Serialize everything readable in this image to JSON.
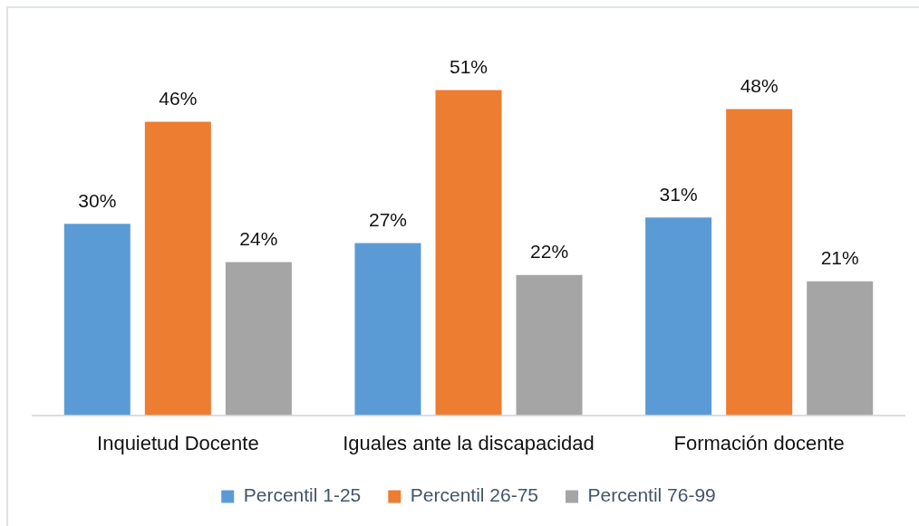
{
  "chart_data": {
    "type": "bar",
    "categories": [
      "Inquietud Docente",
      "Iguales ante la discapacidad",
      "Formación docente"
    ],
    "series": [
      {
        "name": "Percentil 1-25",
        "color": "#5b9bd5",
        "values": [
          30,
          27,
          31
        ],
        "value_labels": [
          "30%",
          "27%",
          "31%"
        ]
      },
      {
        "name": "Percentil 26-75",
        "color": "#ed7d31",
        "values": [
          46,
          51,
          48
        ],
        "value_labels": [
          "46%",
          "51%",
          "48%"
        ]
      },
      {
        "name": "Percentil 76-99",
        "color": "#a5a5a5",
        "values": [
          24,
          22,
          21
        ],
        "value_labels": [
          "24%",
          "22%",
          "21%"
        ]
      }
    ],
    "legend": "bottom"
  }
}
